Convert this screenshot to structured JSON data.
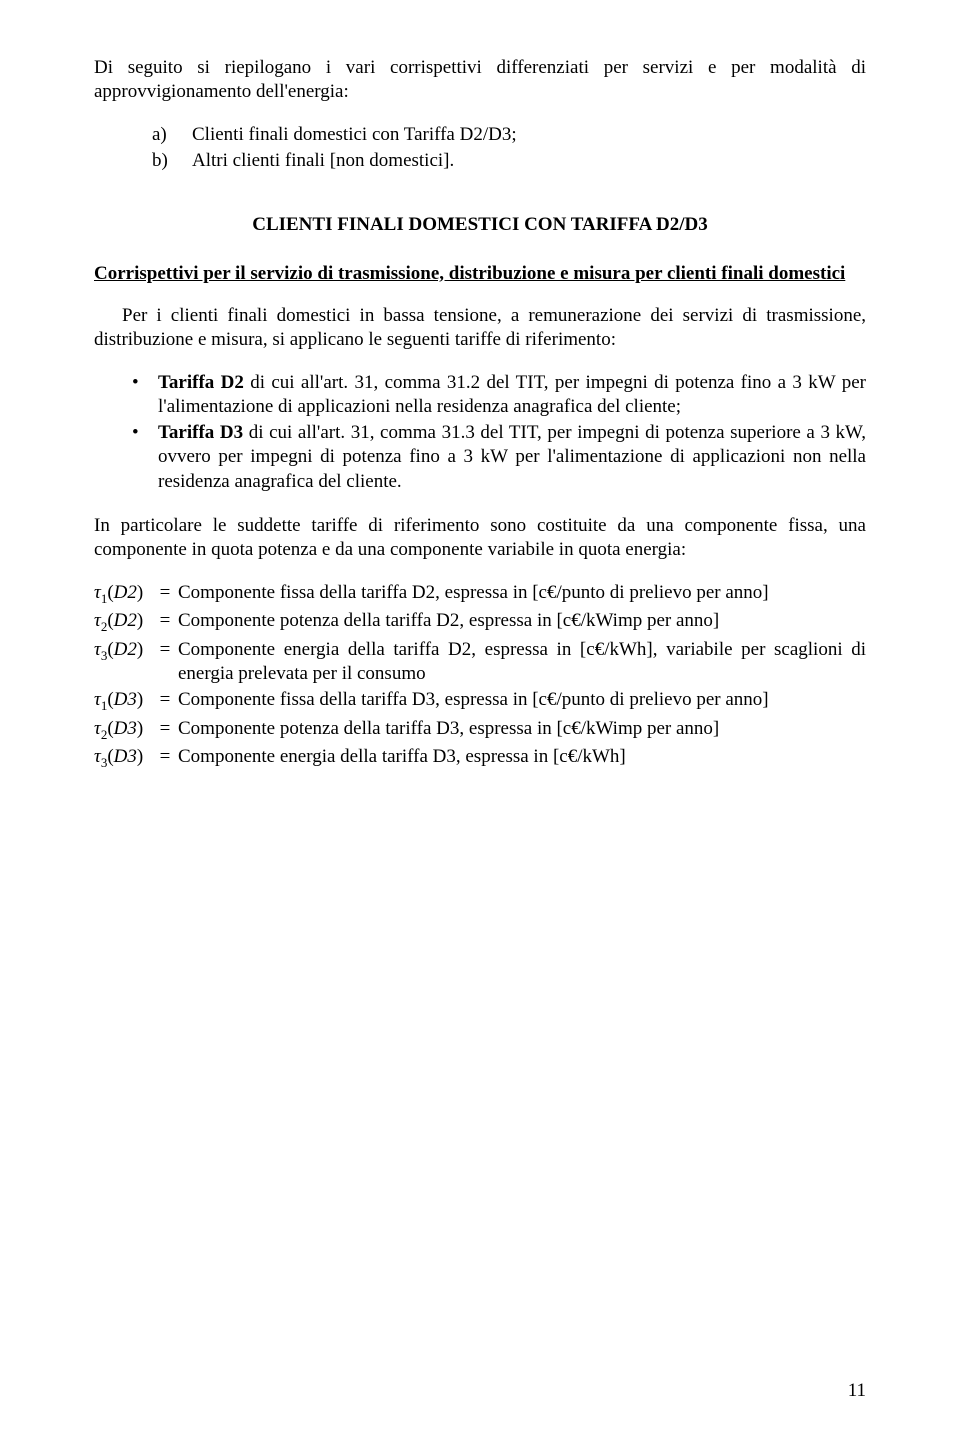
{
  "intro": "Di seguito si riepilogano i vari corrispettivi differenziati per servizi e per modalità di approvvigionamento dell'energia:",
  "list_ab": {
    "a_marker": "a)",
    "a_text": "Clienti finali domestici con Tariffa D2/D3;",
    "b_marker": "b)",
    "b_text": "Altri clienti finali [non domestici]."
  },
  "section_title": "CLIENTI FINALI DOMESTICI CON TARIFFA D2/D3",
  "subsection_title": "Corrispettivi per il servizio di trasmissione, distribuzione e misura per clienti finali domestici",
  "para1_pre": "Per i clienti finali domestici in bassa tensione, a remunerazione dei servizi di trasmissione, distribuzione e misura, si applicano le seguenti tariffe di riferimento:",
  "bullets": {
    "b1_label": "Tariffa D2",
    "b1_text": " di cui all'art. 31, comma 31.2 del TIT, per impegni di potenza fino a 3 kW per l'alimentazione di applicazioni nella residenza anagrafica del cliente;",
    "b2_label": "Tariffa D3",
    "b2_text": " di cui all'art. 31, comma 31.3 del TIT,  per impegni di potenza superiore a 3 kW, ovvero per impegni di potenza fino a 3 kW per l'alimentazione di applicazioni non nella residenza anagrafica del cliente."
  },
  "para2": "In particolare le suddette tariffe di riferimento sono costituite da una componente fissa, una componente in quota potenza e da una componente variabile in quota energia:",
  "defs": [
    {
      "sym_sub": "1",
      "sym_arg": "D2",
      "text": "Componente fissa della tariffa D2, espressa in [c€/punto di prelievo per anno]"
    },
    {
      "sym_sub": "2",
      "sym_arg": "D2",
      "text": "Componente potenza della tariffa D2, espressa in [c€/kWimp per anno]"
    },
    {
      "sym_sub": "3",
      "sym_arg": "D2",
      "text": "Componente energia della tariffa D2, espressa in [c€/kWh], variabile per scaglioni di energia prelevata per il consumo"
    },
    {
      "sym_sub": "1",
      "sym_arg": "D3",
      "text": "Componente fissa della tariffa D3, espressa in [c€/punto di prelievo per anno]"
    },
    {
      "sym_sub": "2",
      "sym_arg": "D3",
      "text": "Componente potenza della tariffa D3, espressa in [c€/kWimp per anno]"
    },
    {
      "sym_sub": "3",
      "sym_arg": "D3",
      "text": "Componente energia della tariffa D3, espressa in [c€/kWh]"
    }
  ],
  "eq_sign": "=",
  "bullet_glyph": "•",
  "page_number": "11"
}
